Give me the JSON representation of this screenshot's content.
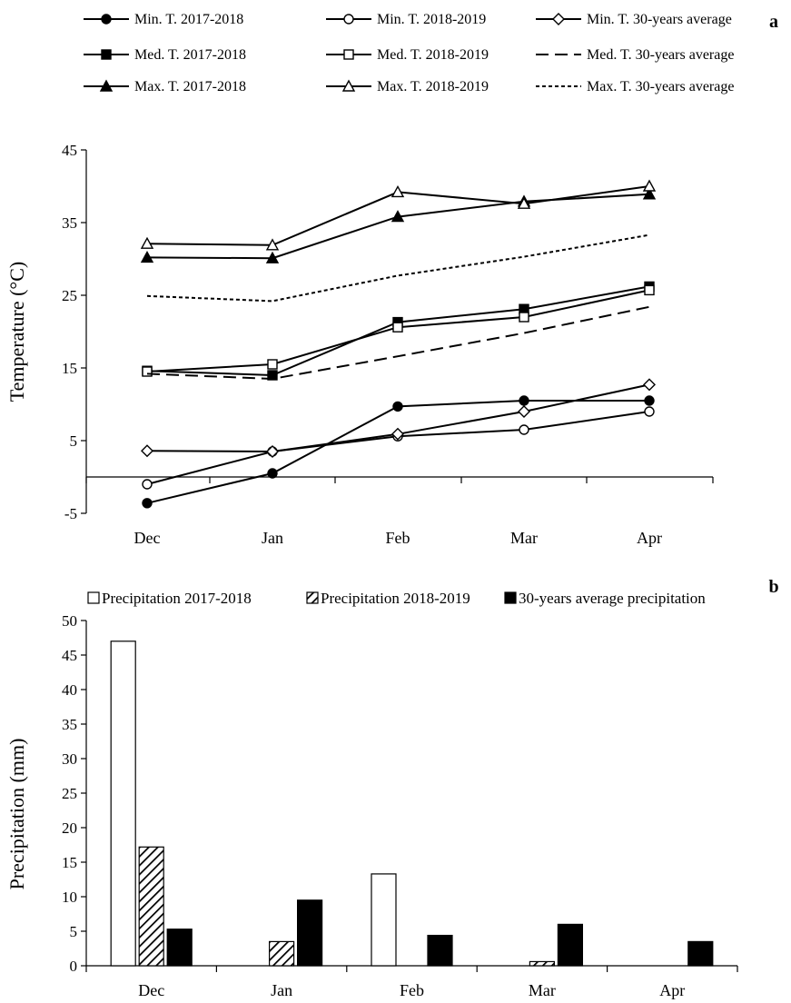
{
  "chart_data": [
    {
      "type": "line",
      "panel_label": "a",
      "ylabel": "Temperature (°C)",
      "categories": [
        "Dec",
        "Jan",
        "Feb",
        "Mar",
        "Apr"
      ],
      "ylim": [
        -5,
        45
      ],
      "yticks": [
        "-5",
        "5",
        "15",
        "25",
        "35",
        "45"
      ],
      "grid": false,
      "legend_position": "top",
      "series": [
        {
          "name": "Min. T. 2017-2018",
          "values": [
            -3.6,
            0.5,
            9.7,
            10.5,
            10.5
          ],
          "marker": "circle-filled",
          "line": "solid"
        },
        {
          "name": "Min. T. 2018-2019",
          "values": [
            -1.0,
            3.5,
            5.6,
            6.5,
            9.0
          ],
          "marker": "circle-open",
          "line": "solid"
        },
        {
          "name": "Min. T. 30-years average",
          "values": [
            3.6,
            3.5,
            5.9,
            9.0,
            12.7
          ],
          "marker": "diamond-open",
          "line": "solid"
        },
        {
          "name": "Med. T. 2017-2018",
          "values": [
            14.6,
            14.0,
            21.3,
            23.1,
            26.2
          ],
          "marker": "square-filled",
          "line": "solid"
        },
        {
          "name": "Med. T. 2018-2019",
          "values": [
            14.5,
            15.5,
            20.6,
            22.0,
            25.7
          ],
          "marker": "square-open",
          "line": "solid"
        },
        {
          "name": "Med. T. 30-years average",
          "values": [
            14.2,
            13.5,
            16.6,
            19.8,
            23.4
          ],
          "marker": "none",
          "line": "dashed"
        },
        {
          "name": "Max. T. 2017-2018",
          "values": [
            30.2,
            30.1,
            35.8,
            37.9,
            38.9
          ],
          "marker": "triangle-filled",
          "line": "solid"
        },
        {
          "name": "Max. T. 2018-2019",
          "values": [
            32.1,
            31.9,
            39.2,
            37.6,
            40.0
          ],
          "marker": "triangle-open",
          "line": "solid"
        },
        {
          "name": "Max. T. 30-years average",
          "values": [
            24.9,
            24.2,
            27.7,
            30.3,
            33.3
          ],
          "marker": "none",
          "line": "dotted"
        }
      ]
    },
    {
      "type": "bar",
      "panel_label": "b",
      "ylabel": "Precipitation (mm)",
      "categories": [
        "Dec",
        "Jan",
        "Feb",
        "Mar",
        "Apr"
      ],
      "ylim": [
        0,
        50
      ],
      "yticks": [
        "0",
        "5",
        "10",
        "15",
        "20",
        "25",
        "30",
        "35",
        "40",
        "45",
        "50"
      ],
      "grid": false,
      "legend_position": "top",
      "series": [
        {
          "name": "Precipitation 2017-2018",
          "values": [
            47.0,
            0,
            13.3,
            0,
            0
          ],
          "fill": "white"
        },
        {
          "name": "Precipitation 2018-2019",
          "values": [
            17.2,
            3.5,
            0,
            0.6,
            0
          ],
          "fill": "hatched"
        },
        {
          "name": "30-years average precipitation",
          "values": [
            5.3,
            9.5,
            4.4,
            6.0,
            3.5
          ],
          "fill": "#000000"
        }
      ]
    }
  ]
}
